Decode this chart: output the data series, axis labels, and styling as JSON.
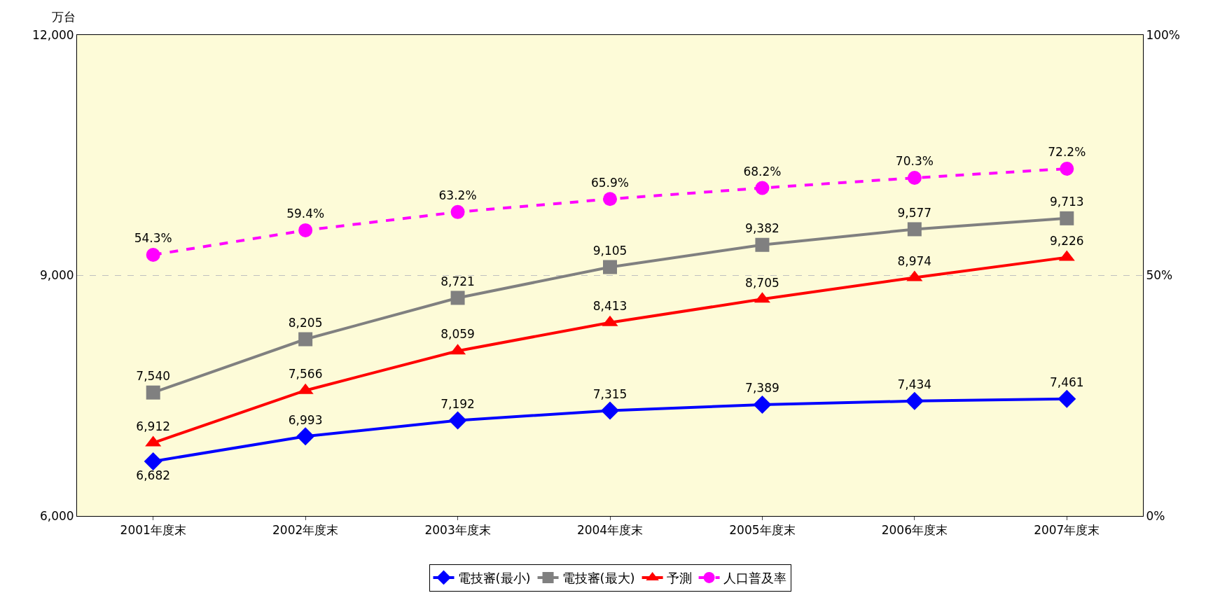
{
  "chart_data": {
    "type": "line",
    "ylabel": "万台",
    "categories": [
      "2001年度末",
      "2002年度末",
      "2003年度末",
      "2004年度末",
      "2005年度末",
      "2006年度末",
      "2007年度末"
    ],
    "series": [
      {
        "name": "電技審(最小)",
        "color": "#0000ff",
        "marker": "diamond",
        "values": [
          6682,
          6993,
          7192,
          7315,
          7389,
          7434,
          7461
        ],
        "value_labels": [
          "6,682",
          "6,993",
          "7,192",
          "7,315",
          "7,389",
          "7,434",
          "7,461"
        ]
      },
      {
        "name": "電技審(最大)",
        "color": "#808080",
        "marker": "square",
        "values": [
          7540,
          8205,
          8721,
          9105,
          9382,
          9577,
          9713
        ],
        "value_labels": [
          "7,540",
          "8,205",
          "8,721",
          "9,105",
          "9,382",
          "9,577",
          "9,713"
        ]
      },
      {
        "name": "予測",
        "color": "#ff0000",
        "marker": "triangle",
        "values": [
          6912,
          7566,
          8059,
          8413,
          8705,
          8974,
          9226
        ],
        "value_labels": [
          "6,912",
          "7,566",
          "8,059",
          "8,413",
          "8,705",
          "8,974",
          "9,226"
        ]
      },
      {
        "name": "人口普及率",
        "color": "#ff00ff",
        "marker": "circle",
        "line_style": "dashed",
        "axis": "y2",
        "values": [
          54.3,
          59.4,
          63.2,
          65.9,
          68.2,
          70.3,
          72.2
        ],
        "value_labels": [
          "54.3%",
          "59.4%",
          "63.2%",
          "65.9%",
          "68.2%",
          "70.3%",
          "72.2%"
        ]
      }
    ],
    "ylim": [
      6000,
      12000
    ],
    "yticks": [
      {
        "value": 6000,
        "label": "6,000"
      },
      {
        "value": 9000,
        "label": "9,000"
      },
      {
        "value": 12000,
        "label": "12,000"
      }
    ],
    "y2lim": [
      0,
      100
    ],
    "y2ticks": [
      {
        "value": 0,
        "label": "0%"
      },
      {
        "value": 50,
        "label": "50%"
      },
      {
        "value": 100,
        "label": "100%"
      }
    ],
    "grid": "y",
    "legend": "bottom"
  }
}
